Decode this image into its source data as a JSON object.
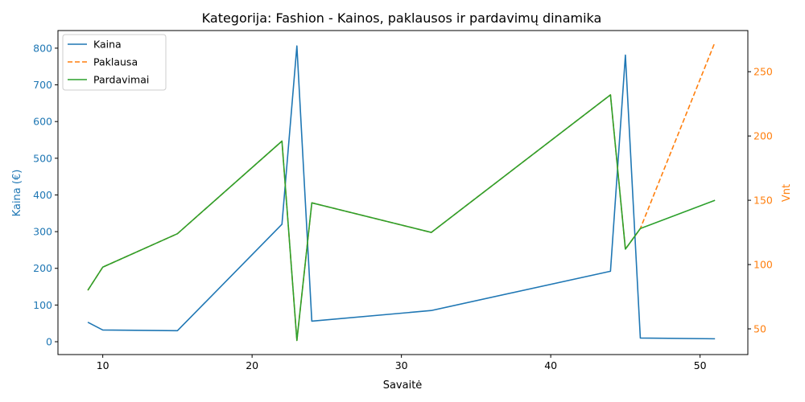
{
  "chart_data": {
    "type": "line",
    "title": "Kategorija: Fashion - Kainos, paklausos ir pardavimų dinamika",
    "xlabel": "Savaitė",
    "ylabel_left": "Kaina (€)",
    "ylabel_right": "Vnt",
    "xlim": [
      7,
      53.2
    ],
    "ylim_left": [
      -35,
      848
    ],
    "ylim_right": [
      30,
      282
    ],
    "x_ticks": [
      10,
      20,
      30,
      40,
      50
    ],
    "y_ticks_left": [
      0,
      100,
      200,
      300,
      400,
      500,
      600,
      700,
      800
    ],
    "y_ticks_right": [
      50,
      100,
      150,
      200,
      250
    ],
    "legend_position": "upper-left",
    "colors": {
      "left_axis": "#1f77b4",
      "right_axis": "#ff7f0e"
    },
    "series": [
      {
        "name": "Kaina",
        "axis": "left",
        "color": "#1f77b4",
        "style": "solid",
        "x": [
          9,
          10,
          15,
          22,
          23,
          24,
          32,
          44,
          45,
          46,
          51
        ],
        "y": [
          53,
          32,
          30,
          320,
          806,
          56,
          85,
          192,
          781,
          10,
          8
        ]
      },
      {
        "name": "Paklausa",
        "axis": "right",
        "color": "#ff7f0e",
        "style": "dashed",
        "x": [
          9,
          10,
          15,
          22,
          23,
          24,
          32,
          44,
          45,
          46,
          51
        ],
        "y": [
          80,
          98,
          124,
          196,
          41,
          148,
          125,
          232,
          112,
          128,
          273
        ]
      },
      {
        "name": "Pardavimai",
        "axis": "right",
        "color": "#2ca02c",
        "style": "solid",
        "x": [
          9,
          10,
          15,
          22,
          23,
          24,
          32,
          44,
          45,
          46,
          51
        ],
        "y": [
          80,
          98,
          124,
          196,
          41,
          148,
          125,
          232,
          112,
          128,
          150
        ]
      }
    ]
  }
}
